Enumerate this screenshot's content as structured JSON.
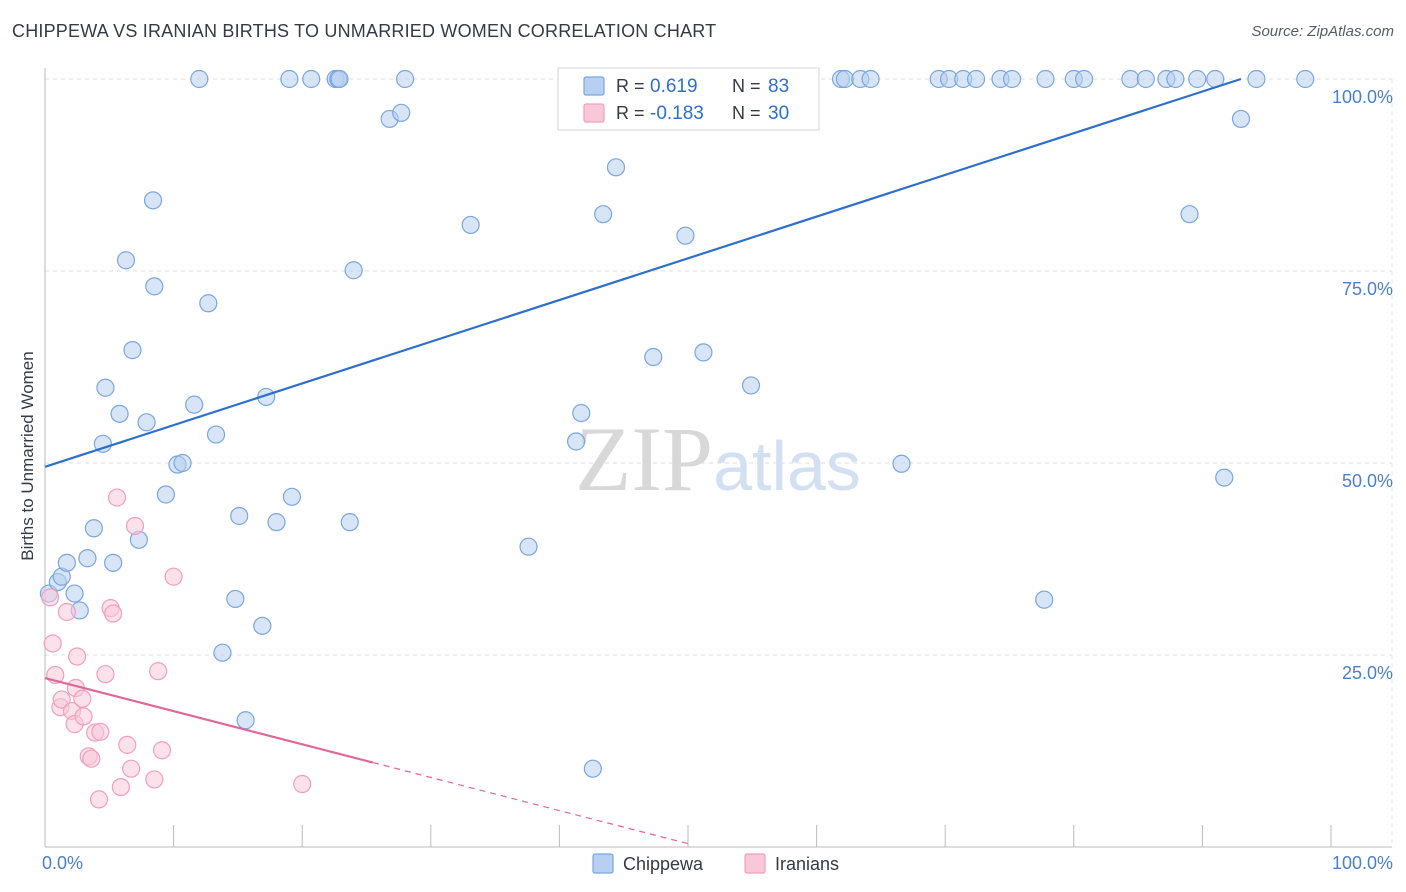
{
  "chart_data": {
    "type": "scatter",
    "title": "CHIPPEWA VS IRANIAN BIRTHS TO UNMARRIED WOMEN CORRELATION CHART",
    "source": "Source: ZipAtlas.com",
    "xlabel": "",
    "ylabel": "Births to Unmarried Women",
    "xlim": [
      0,
      100
    ],
    "ylim": [
      0,
      100
    ],
    "x_tick_labels": [
      {
        "value": 0,
        "label": "0.0%"
      },
      {
        "value": 100,
        "label": "100.0%"
      }
    ],
    "y_tick_labels": [
      {
        "value": 100,
        "label": "100.0%"
      },
      {
        "value": 75,
        "label": "75.0%"
      },
      {
        "value": 50,
        "label": "50.0%"
      },
      {
        "value": 25,
        "label": "25.0%"
      }
    ],
    "grid": true,
    "legend_position": "bottom-center",
    "stats_box": [
      {
        "r_label": "R = ",
        "r_value": "0.619",
        "n_label": "N = ",
        "n_value": "83",
        "series": "Chippewa"
      },
      {
        "r_label": "R = ",
        "r_value": "-0.183",
        "n_label": "N = ",
        "n_value": "30",
        "series": "Iranians"
      }
    ],
    "watermark": "ZIPatlas",
    "series": [
      {
        "name": "Chippewa",
        "color": "#7aa6e0",
        "fill": "#b7cff0",
        "line_color": "#2e6fcc",
        "trend": {
          "x0": 0,
          "y0": 49.5,
          "x1": 93,
          "y1": 100,
          "dashed_to": 93
        },
        "points": [
          [
            0.3,
            33
          ],
          [
            1.0,
            34.5
          ],
          [
            1.3,
            35.2
          ],
          [
            1.7,
            37
          ],
          [
            2.3,
            33
          ],
          [
            2.7,
            30.8
          ],
          [
            3.3,
            37.6
          ],
          [
            3.8,
            41.5
          ],
          [
            4.5,
            52.5
          ],
          [
            4.7,
            59.8
          ],
          [
            5.3,
            37
          ],
          [
            5.8,
            56.4
          ],
          [
            6.3,
            76.4
          ],
          [
            6.8,
            64.7
          ],
          [
            7.3,
            40
          ],
          [
            7.9,
            55.3
          ],
          [
            8.4,
            84.2
          ],
          [
            8.5,
            73
          ],
          [
            9.4,
            45.9
          ],
          [
            10.3,
            49.8
          ],
          [
            10.7,
            50
          ],
          [
            11.6,
            57.6
          ],
          [
            12.0,
            100
          ],
          [
            12.7,
            70.8
          ],
          [
            13.3,
            53.7
          ],
          [
            13.8,
            25.3
          ],
          [
            14.8,
            32.3
          ],
          [
            15.1,
            43.1
          ],
          [
            15.6,
            16.5
          ],
          [
            16.9,
            28.8
          ],
          [
            17.2,
            58.6
          ],
          [
            18.0,
            42.3
          ],
          [
            19.2,
            45.6
          ],
          [
            19.0,
            100
          ],
          [
            20.7,
            100
          ],
          [
            22.6,
            100
          ],
          [
            22.8,
            100
          ],
          [
            22.9,
            100
          ],
          [
            23.7,
            42.3
          ],
          [
            24.0,
            75.1
          ],
          [
            26.8,
            94.8
          ],
          [
            27.7,
            95.6
          ],
          [
            28.0,
            100
          ],
          [
            33.1,
            81
          ],
          [
            37.6,
            39.1
          ],
          [
            41.3,
            52.8
          ],
          [
            41.7,
            56.5
          ],
          [
            42.6,
            10.2
          ],
          [
            43.4,
            82.4
          ],
          [
            44.4,
            88.5
          ],
          [
            45.7,
            100
          ],
          [
            46.6,
            100
          ],
          [
            47.3,
            63.8
          ],
          [
            49.8,
            79.6
          ],
          [
            51.2,
            64.4
          ],
          [
            52.1,
            100
          ],
          [
            54.9,
            60.1
          ],
          [
            61.9,
            100
          ],
          [
            62.2,
            100
          ],
          [
            63.4,
            100
          ],
          [
            64.2,
            100
          ],
          [
            66.6,
            49.9
          ],
          [
            69.5,
            100
          ],
          [
            70.3,
            100
          ],
          [
            71.4,
            100
          ],
          [
            72.4,
            100
          ],
          [
            74.3,
            100
          ],
          [
            75.2,
            100
          ],
          [
            77.7,
            32.2
          ],
          [
            77.8,
            100
          ],
          [
            80.0,
            100
          ],
          [
            80.8,
            100
          ],
          [
            84.4,
            100
          ],
          [
            85.6,
            100
          ],
          [
            87.2,
            100
          ],
          [
            87.9,
            100
          ],
          [
            89.0,
            82.4
          ],
          [
            89.6,
            100
          ],
          [
            91.0,
            100
          ],
          [
            91.7,
            48.1
          ],
          [
            93.0,
            94.8
          ],
          [
            94.2,
            100
          ],
          [
            98.0,
            100
          ]
        ]
      },
      {
        "name": "Iranians",
        "color": "#f0a0ba",
        "fill": "#f8c8d8",
        "line_color": "#e0679a",
        "trend": {
          "x0": 0,
          "y0": 22,
          "x1": 25.5,
          "y1": 11,
          "dashed_to": 50
        },
        "points": [
          [
            0.4,
            32.5
          ],
          [
            0.6,
            26.5
          ],
          [
            0.8,
            22.4
          ],
          [
            1.2,
            18.2
          ],
          [
            1.3,
            19.2
          ],
          [
            1.7,
            30.6
          ],
          [
            2.1,
            17.7
          ],
          [
            2.3,
            16.0
          ],
          [
            2.4,
            20.7
          ],
          [
            2.5,
            24.8
          ],
          [
            2.9,
            19.3
          ],
          [
            3.0,
            17
          ],
          [
            3.4,
            11.8
          ],
          [
            3.6,
            11.5
          ],
          [
            3.9,
            14.9
          ],
          [
            4.2,
            6.2
          ],
          [
            4.3,
            15.0
          ],
          [
            4.7,
            22.5
          ],
          [
            5.1,
            31.1
          ],
          [
            5.3,
            30.4
          ],
          [
            5.6,
            45.5
          ],
          [
            5.9,
            7.8
          ],
          [
            6.4,
            13.3
          ],
          [
            6.7,
            10.2
          ],
          [
            7.0,
            41.8
          ],
          [
            8.5,
            8.8
          ],
          [
            8.8,
            22.9
          ],
          [
            9.1,
            12.6
          ],
          [
            10.0,
            35.2
          ],
          [
            20.0,
            8.2
          ]
        ]
      }
    ]
  }
}
